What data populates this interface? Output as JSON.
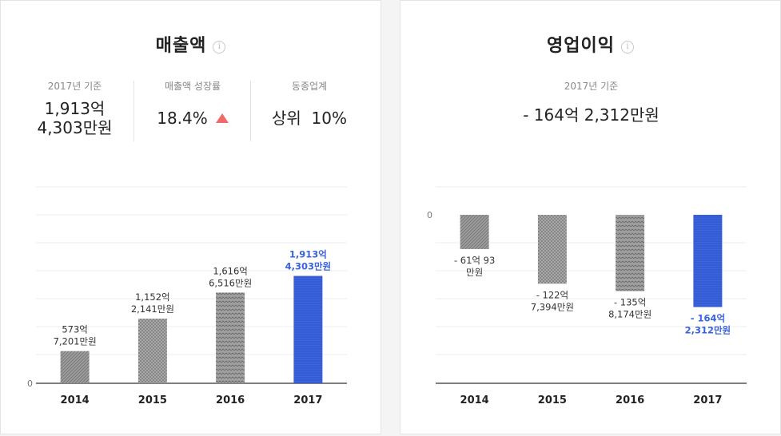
{
  "colors": {
    "gray_bar": "#9e9e9e",
    "highlight_bar": "#3a63e0",
    "highlight_text": "#3a63e0",
    "up_arrow": "#f06a6a"
  },
  "revenue": {
    "title": "매출액",
    "info_icon": "i",
    "stats": [
      {
        "label": "2017년 기준",
        "value_lines": [
          "1,913억",
          "4,303만원"
        ]
      },
      {
        "label": "매출액 성장률",
        "value_lines": [
          "18.4%"
        ]
      },
      {
        "label": "동종업계",
        "value_lines": [
          "상위  10%"
        ]
      }
    ]
  },
  "profit": {
    "title": "영업이익",
    "info_icon": "i",
    "stat": {
      "label": "2017년 기준",
      "value": "- 164억 2,312만원"
    }
  },
  "chart_data": [
    {
      "type": "bar",
      "title": "매출액",
      "categories": [
        "2014",
        "2015",
        "2016",
        "2017"
      ],
      "values": [
        573.7201,
        1152.2141,
        1616.6516,
        1913.4303
      ],
      "unit": "억",
      "ylim": [
        0,
        3500
      ],
      "yticks": [
        0
      ],
      "grid": true,
      "highlight_index": 3,
      "data_labels": [
        [
          "573억",
          "7,201만원"
        ],
        [
          "1,152억",
          "2,141만원"
        ],
        [
          "1,616억",
          "6,516만원"
        ],
        [
          "1,913억",
          "4,303만원"
        ]
      ]
    },
    {
      "type": "bar",
      "title": "영업이익",
      "categories": [
        "2014",
        "2015",
        "2016",
        "2017"
      ],
      "values": [
        -61.0093,
        -122.7394,
        -135.8174,
        -164.2312
      ],
      "unit": "억",
      "ylim": [
        -300,
        0
      ],
      "yticks": [
        0
      ],
      "grid": true,
      "highlight_index": 3,
      "data_labels": [
        [
          "- 61억 93",
          "만원"
        ],
        [
          "- 122억",
          "7,394만원"
        ],
        [
          "- 135억",
          "8,174만원"
        ],
        [
          "- 164억",
          "2,312만원"
        ]
      ]
    }
  ]
}
